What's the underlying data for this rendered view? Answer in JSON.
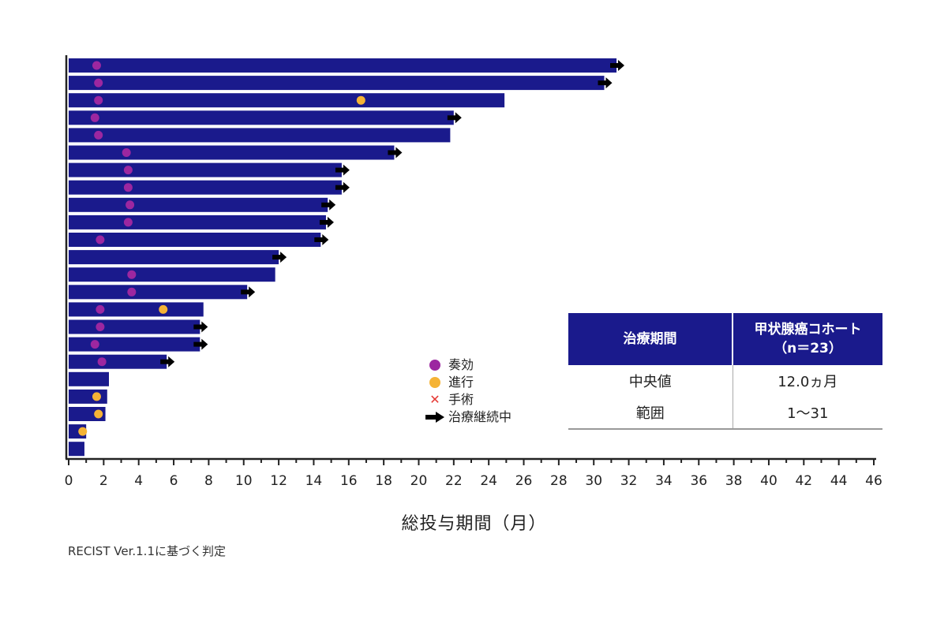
{
  "chart_data": {
    "type": "bar",
    "orientation": "horizontal",
    "xlabel": "総投与期間（月）",
    "xlim": [
      0,
      46
    ],
    "xticks": [
      0,
      2,
      4,
      6,
      8,
      10,
      12,
      14,
      16,
      18,
      20,
      22,
      24,
      26,
      28,
      30,
      32,
      34,
      36,
      38,
      40,
      42,
      44,
      46
    ],
    "bar_color": "#1a1a8c",
    "marker_colors": {
      "response": "#9c27a0",
      "progression": "#f5b335",
      "surgery": "#e53935"
    },
    "patients": [
      {
        "duration": 31.3,
        "response": 1.6,
        "ongoing": true
      },
      {
        "duration": 30.6,
        "response": 1.7,
        "ongoing": true
      },
      {
        "duration": 24.9,
        "response": 1.7,
        "progression": 16.7
      },
      {
        "duration": 22.0,
        "response": 1.5,
        "ongoing": true
      },
      {
        "duration": 21.8,
        "response": 1.7
      },
      {
        "duration": 18.6,
        "response": 3.3,
        "ongoing": true
      },
      {
        "duration": 15.6,
        "response": 3.4,
        "ongoing": true
      },
      {
        "duration": 15.6,
        "response": 3.4,
        "ongoing": true
      },
      {
        "duration": 14.8,
        "response": 3.5,
        "ongoing": true
      },
      {
        "duration": 14.7,
        "response": 3.4,
        "ongoing": true
      },
      {
        "duration": 14.4,
        "response": 1.8,
        "ongoing": true
      },
      {
        "duration": 12.0,
        "ongoing": true
      },
      {
        "duration": 11.8,
        "response": 3.6
      },
      {
        "duration": 10.2,
        "response": 3.6,
        "ongoing": true
      },
      {
        "duration": 7.7,
        "response": 1.8,
        "progression": 5.4
      },
      {
        "duration": 7.5,
        "response": 1.8,
        "ongoing": true
      },
      {
        "duration": 7.5,
        "response": 1.5,
        "ongoing": true
      },
      {
        "duration": 5.6,
        "response": 1.9,
        "ongoing": true
      },
      {
        "duration": 2.3
      },
      {
        "duration": 2.2,
        "progression": 1.6
      },
      {
        "duration": 2.1,
        "progression": 1.7
      },
      {
        "duration": 1.0,
        "progression": 0.8
      },
      {
        "duration": 0.9
      }
    ]
  },
  "legend": {
    "items": [
      {
        "label": "奏効",
        "marker": "dot",
        "color": "#9c27a0"
      },
      {
        "label": "進行",
        "marker": "dot",
        "color": "#f5b335"
      },
      {
        "label": "手術",
        "marker": "x",
        "color": "#e53935"
      },
      {
        "label": "治療継続中",
        "marker": "arrow",
        "color": "#000000"
      }
    ]
  },
  "summary_table": {
    "header": [
      "治療期間",
      "甲状腺癌コホート",
      "（n＝23）"
    ],
    "rows": [
      [
        "中央値",
        "12.0ヵ月"
      ],
      [
        "範囲",
        "1〜31"
      ]
    ],
    "header_bg": "#1a1a8c"
  },
  "footnote": "RECIST Ver.1.1に基づく判定"
}
